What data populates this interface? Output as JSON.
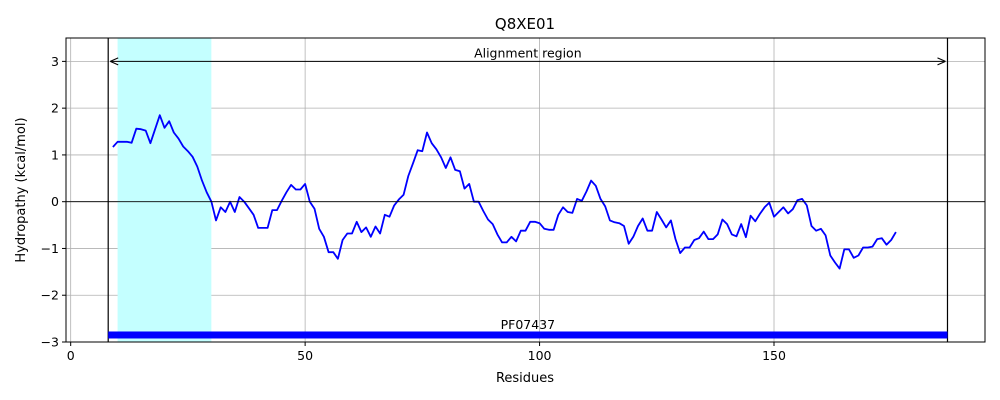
{
  "chart_data": {
    "type": "line",
    "title": "Q8XE01",
    "xlabel": "Residues",
    "ylabel": "Hydropathy (kcal/mol)",
    "xlim": [
      -1,
      195
    ],
    "ylim": [
      -3,
      3.5
    ],
    "xticks": [
      0,
      50,
      100,
      150
    ],
    "yticks": [
      -3,
      -2,
      -1,
      0,
      1,
      2,
      3
    ],
    "tick_labels_x": [
      "0",
      "50",
      "100",
      "150"
    ],
    "tick_labels_y": [
      "−3",
      "−2",
      "−1",
      "0",
      "1",
      "2",
      "3"
    ],
    "grid": true,
    "colors": {
      "line": "#0000ff",
      "highlight": "#c4ffff",
      "domain_bar": "#0000ff",
      "zero_line": "#000000"
    },
    "highlight_region": {
      "start": 10,
      "end": 30
    },
    "alignment_region": {
      "start": 8,
      "end": 187,
      "label": "Alignment region",
      "arrow_y": 3
    },
    "domain": {
      "name": "PF07437",
      "start": 8,
      "end": 187,
      "y": -2.85
    },
    "series": [
      {
        "x": [
          9,
          10,
          11,
          12,
          13,
          14,
          15,
          16,
          17,
          18,
          19,
          20,
          21,
          22,
          23,
          24,
          25,
          26,
          27,
          28,
          29,
          30,
          31,
          32,
          33,
          34,
          35,
          36,
          37,
          38,
          39,
          40,
          41,
          42,
          43,
          44,
          45,
          46,
          47,
          48,
          49,
          50,
          51,
          52,
          53,
          54,
          55,
          56,
          57,
          58,
          59,
          60,
          61,
          62,
          63,
          64,
          65,
          66,
          67,
          68,
          69,
          70,
          71,
          72,
          73,
          74,
          75,
          76,
          77,
          78,
          79,
          80,
          81,
          82,
          83,
          84,
          85,
          86,
          87,
          88,
          89,
          90,
          91,
          92,
          93,
          94,
          95,
          96,
          97,
          98,
          99,
          100,
          101,
          102,
          103,
          104,
          105,
          106,
          107,
          108,
          109,
          110,
          111,
          112,
          113,
          114,
          115,
          116,
          117,
          118,
          119,
          120,
          121,
          122,
          123,
          124,
          125,
          126,
          127,
          128,
          129,
          130,
          131,
          132,
          133,
          134,
          135,
          136,
          137,
          138,
          139,
          140,
          141,
          142,
          143,
          144,
          145,
          146,
          147,
          148,
          149,
          150,
          151,
          152,
          153,
          154,
          155,
          156,
          157,
          158,
          159,
          160,
          161,
          162,
          163,
          164,
          165,
          166,
          167,
          168,
          169,
          170,
          171,
          172,
          173,
          174,
          175,
          176
        ],
        "values": [
          1.17,
          1.28,
          1.28,
          1.28,
          1.26,
          1.56,
          1.55,
          1.52,
          1.25,
          1.55,
          1.85,
          1.58,
          1.72,
          1.48,
          1.35,
          1.18,
          1.08,
          0.96,
          0.75,
          0.45,
          0.2,
          0.0,
          -0.4,
          -0.12,
          -0.22,
          0.0,
          -0.22,
          0.1,
          0.0,
          -0.14,
          -0.28,
          -0.56,
          -0.56,
          -0.56,
          -0.18,
          -0.18,
          0.02,
          0.2,
          0.36,
          0.26,
          0.26,
          0.38,
          0.0,
          -0.15,
          -0.58,
          -0.75,
          -1.08,
          -1.08,
          -1.22,
          -0.82,
          -0.68,
          -0.68,
          -0.43,
          -0.65,
          -0.55,
          -0.75,
          -0.53,
          -0.68,
          -0.28,
          -0.32,
          -0.08,
          0.05,
          0.15,
          0.55,
          0.82,
          1.1,
          1.08,
          1.48,
          1.25,
          1.12,
          0.95,
          0.72,
          0.95,
          0.68,
          0.65,
          0.28,
          0.38,
          0.0,
          0.0,
          -0.2,
          -0.38,
          -0.48,
          -0.7,
          -0.87,
          -0.87,
          -0.75,
          -0.85,
          -0.62,
          -0.62,
          -0.43,
          -0.43,
          -0.46,
          -0.58,
          -0.6,
          -0.6,
          -0.28,
          -0.12,
          -0.22,
          -0.24,
          0.06,
          0.02,
          0.22,
          0.45,
          0.34,
          0.06,
          -0.1,
          -0.4,
          -0.44,
          -0.46,
          -0.52,
          -0.9,
          -0.75,
          -0.52,
          -0.36,
          -0.62,
          -0.62,
          -0.22,
          -0.38,
          -0.55,
          -0.4,
          -0.8,
          -1.1,
          -0.98,
          -0.98,
          -0.82,
          -0.78,
          -0.64,
          -0.8,
          -0.8,
          -0.7,
          -0.38,
          -0.48,
          -0.7,
          -0.74,
          -0.48,
          -0.76,
          -0.3,
          -0.42,
          -0.26,
          -0.12,
          -0.02,
          -0.32,
          -0.22,
          -0.12,
          -0.25,
          -0.16,
          0.03,
          0.06,
          -0.08,
          -0.52,
          -0.62,
          -0.58,
          -0.72,
          -1.15,
          -1.3,
          -1.43,
          -1.02,
          -1.02,
          -1.2,
          -1.15,
          -0.98,
          -0.98,
          -0.96,
          -0.8,
          -0.78,
          -0.92,
          -0.82,
          -0.65
        ]
      }
    ]
  }
}
